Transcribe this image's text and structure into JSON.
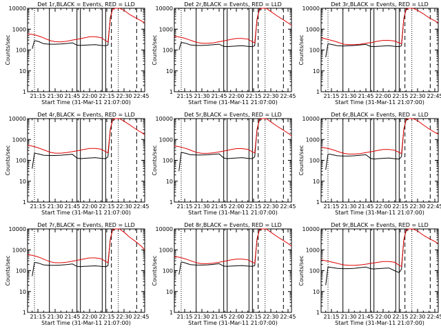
{
  "chart_data": {
    "type": "line",
    "layout": "3x3 grid",
    "x_tick_labels": [
      "21:15",
      "21:30",
      "21:45",
      "22:00",
      "22:15",
      "22:30",
      "22:45"
    ],
    "x_ticks_min": [
      15,
      30,
      45,
      60,
      75,
      90,
      105
    ],
    "x_range_min": [
      6,
      108
    ],
    "xlabel": "Start Time (31-Mar-11 21:07:00)",
    "ylabel": "Counts/sec",
    "y_scale": "log",
    "ylim": [
      1,
      10000
    ],
    "y_tick_labels": [
      "1",
      "10",
      "100",
      "1000",
      "10000"
    ],
    "y_ticks": [
      1,
      10,
      100,
      1000,
      10000
    ],
    "grid": false,
    "series_colors": {
      "events": "#000000",
      "lld": "#e00000"
    },
    "vertical_markers": {
      "solid_min": [
        25,
        49,
        52,
        71,
        74
      ],
      "dotted_min": [
        12,
        85
      ],
      "dashed_min": [
        79,
        101
      ]
    },
    "panels": [
      {
        "title": "Det 1r,BLACK = Events, RED = LLD",
        "events": {
          "x": [
            10,
            12,
            14,
            16,
            20,
            25,
            30,
            35,
            40,
            45,
            49,
            52,
            55,
            60,
            65,
            70,
            74,
            76,
            78,
            80,
            82
          ],
          "y": [
            115,
            280,
            270,
            250,
            200,
            190,
            190,
            195,
            205,
            220,
            170,
            165,
            170,
            175,
            180,
            165,
            160,
            170,
            3500,
            9000,
            9500
          ]
        },
        "lld": {
          "x": [
            6,
            10,
            14,
            18,
            22,
            26,
            30,
            35,
            40,
            45,
            50,
            55,
            60,
            65,
            70,
            74,
            76,
            78,
            80,
            82,
            86,
            90,
            95,
            100,
            105,
            108
          ],
          "y": [
            600,
            560,
            500,
            420,
            340,
            280,
            250,
            245,
            260,
            300,
            330,
            380,
            430,
            430,
            390,
            280,
            240,
            3000,
            9000,
            10000,
            10000,
            8000,
            5000,
            3500,
            2500,
            2000
          ]
        }
      },
      {
        "title": "Det 2r,BLACK = Events, RED = LLD",
        "events": {
          "x": [
            10,
            12,
            14,
            16,
            20,
            25,
            30,
            35,
            40,
            45,
            49,
            52,
            55,
            60,
            65,
            70,
            74,
            76,
            78,
            80,
            82
          ],
          "y": [
            100,
            230,
            220,
            210,
            175,
            165,
            165,
            170,
            180,
            190,
            150,
            145,
            150,
            155,
            160,
            150,
            145,
            160,
            3000,
            8000,
            9000
          ]
        },
        "lld": {
          "x": [
            6,
            10,
            14,
            18,
            22,
            26,
            30,
            35,
            40,
            45,
            50,
            55,
            60,
            65,
            70,
            74,
            76,
            78,
            80,
            82,
            86,
            90,
            95,
            100,
            105,
            108
          ],
          "y": [
            460,
            420,
            380,
            320,
            270,
            230,
            210,
            210,
            220,
            250,
            280,
            320,
            360,
            360,
            330,
            250,
            220,
            2800,
            9000,
            10000,
            10000,
            7000,
            4500,
            3000,
            2000,
            1500
          ]
        }
      },
      {
        "title": "Det 3r,BLACK = Events, RED = LLD",
        "events": {
          "x": [
            10,
            12,
            14,
            16,
            20,
            25,
            30,
            35,
            40,
            45,
            49,
            52,
            55,
            60,
            65,
            70,
            74,
            76,
            78,
            80,
            82
          ],
          "y": [
            45,
            200,
            190,
            180,
            160,
            155,
            160,
            165,
            175,
            185,
            150,
            145,
            150,
            155,
            160,
            150,
            145,
            160,
            3200,
            8500,
            9000
          ]
        },
        "lld": {
          "x": [
            6,
            10,
            14,
            18,
            22,
            26,
            30,
            35,
            40,
            45,
            50,
            55,
            60,
            65,
            70,
            74,
            76,
            78,
            80,
            82,
            86,
            90,
            95,
            100,
            105,
            108
          ],
          "y": [
            380,
            340,
            300,
            260,
            220,
            190,
            180,
            180,
            190,
            210,
            230,
            260,
            290,
            290,
            270,
            220,
            200,
            3000,
            9000,
            10000,
            10000,
            8000,
            5500,
            3500,
            2500,
            2000
          ]
        }
      },
      {
        "title": "Det 4r,BLACK = Events, RED = LLD",
        "events": {
          "x": [
            10,
            12,
            14,
            16,
            20,
            25,
            30,
            35,
            40,
            45,
            49,
            52,
            55,
            60,
            65,
            70,
            74,
            76,
            78,
            80,
            82
          ],
          "y": [
            40,
            220,
            210,
            200,
            175,
            170,
            170,
            175,
            185,
            195,
            130,
            120,
            125,
            130,
            135,
            125,
            120,
            150,
            3000,
            8000,
            9000
          ]
        },
        "lld": {
          "x": [
            6,
            10,
            14,
            18,
            22,
            26,
            30,
            35,
            40,
            45,
            50,
            55,
            60,
            65,
            70,
            74,
            76,
            78,
            80,
            82,
            86,
            90,
            95,
            100,
            105,
            108
          ],
          "y": [
            520,
            480,
            420,
            350,
            290,
            240,
            220,
            220,
            235,
            260,
            290,
            330,
            370,
            370,
            340,
            260,
            230,
            2800,
            9000,
            10000,
            10000,
            7500,
            5000,
            3200,
            2200,
            1700
          ]
        }
      },
      {
        "title": "Det 5r,BLACK = Events, RED = LLD",
        "events": {
          "x": [
            10,
            12,
            14,
            16,
            20,
            25,
            30,
            35,
            40,
            45,
            49,
            52,
            55,
            60,
            65,
            70,
            74,
            76,
            78,
            80,
            82
          ],
          "y": [
            30,
            240,
            230,
            215,
            185,
            180,
            180,
            185,
            195,
            205,
            130,
            120,
            125,
            130,
            135,
            125,
            120,
            150,
            3000,
            8000,
            9000
          ]
        },
        "lld": {
          "x": [
            6,
            10,
            14,
            18,
            22,
            26,
            30,
            35,
            40,
            45,
            50,
            55,
            60,
            65,
            70,
            74,
            76,
            78,
            80,
            82,
            86,
            90,
            95,
            100,
            105,
            108
          ],
          "y": [
            490,
            450,
            400,
            340,
            280,
            235,
            215,
            215,
            230,
            255,
            285,
            325,
            365,
            365,
            335,
            255,
            225,
            2800,
            9000,
            10000,
            10000,
            7000,
            4500,
            3000,
            2000,
            1500
          ]
        }
      },
      {
        "title": "Det 6r,BLACK = Events, RED = LLD",
        "events": {
          "x": [
            10,
            12,
            14,
            16,
            20,
            25,
            30,
            35,
            40,
            45,
            49,
            52,
            55,
            60,
            65,
            70,
            74,
            76,
            78,
            80,
            82
          ],
          "y": [
            35,
            200,
            195,
            185,
            165,
            160,
            160,
            165,
            175,
            185,
            125,
            115,
            120,
            125,
            130,
            120,
            115,
            150,
            3000,
            8500,
            9000
          ]
        },
        "lld": {
          "x": [
            6,
            10,
            14,
            18,
            22,
            26,
            30,
            35,
            40,
            45,
            50,
            55,
            60,
            65,
            70,
            74,
            76,
            78,
            80,
            82,
            86,
            90,
            95,
            100,
            105,
            108
          ],
          "y": [
            420,
            390,
            350,
            300,
            250,
            215,
            200,
            200,
            210,
            235,
            260,
            295,
            330,
            330,
            305,
            240,
            210,
            2900,
            9000,
            10000,
            10000,
            8000,
            5000,
            3200,
            2200,
            1800
          ]
        }
      },
      {
        "title": "Det 7r,BLACK = Events, RED = LLD",
        "events": {
          "x": [
            10,
            12,
            14,
            16,
            20,
            25,
            30,
            35,
            40,
            45,
            49,
            52,
            55,
            60,
            65,
            70,
            74,
            76,
            78,
            80,
            82
          ],
          "y": [
            55,
            250,
            240,
            225,
            190,
            180,
            180,
            185,
            195,
            210,
            160,
            155,
            160,
            165,
            170,
            160,
            155,
            170,
            3200,
            8500,
            9000
          ]
        },
        "lld": {
          "x": [
            6,
            10,
            14,
            18,
            22,
            26,
            30,
            35,
            40,
            45,
            50,
            55,
            60,
            65,
            70,
            74,
            76,
            78,
            80,
            82,
            86,
            90,
            95,
            100,
            105,
            108
          ],
          "y": [
            580,
            540,
            480,
            400,
            320,
            265,
            240,
            240,
            255,
            285,
            320,
            365,
            410,
            410,
            375,
            275,
            240,
            3000,
            9000,
            10000,
            10000,
            7000,
            4000,
            2500,
            1500,
            1000
          ]
        }
      },
      {
        "title": "Det 8r,BLACK = Events, RED = LLD",
        "events": {
          "x": [
            10,
            12,
            14,
            16,
            20,
            25,
            30,
            35,
            40,
            45,
            49,
            52,
            55,
            60,
            65,
            70,
            74,
            76,
            78,
            80,
            82
          ],
          "y": [
            65,
            260,
            250,
            230,
            195,
            185,
            185,
            190,
            200,
            215,
            165,
            160,
            165,
            170,
            175,
            165,
            160,
            175,
            3300,
            8500,
            9000
          ]
        },
        "lld": {
          "x": [
            6,
            10,
            14,
            18,
            22,
            26,
            30,
            35,
            40,
            45,
            50,
            55,
            60,
            65,
            70,
            74,
            76,
            78,
            80,
            82,
            86,
            90,
            95,
            100,
            105,
            108
          ],
          "y": [
            480,
            440,
            390,
            330,
            275,
            235,
            215,
            215,
            230,
            255,
            285,
            325,
            360,
            360,
            330,
            255,
            225,
            3000,
            9000,
            10000,
            10000,
            7000,
            4500,
            3000,
            2000,
            1500
          ]
        }
      },
      {
        "title": "Det 9r,BLACK = Events, RED = LLD",
        "events": {
          "x": [
            10,
            12,
            14,
            16,
            20,
            25,
            30,
            35,
            40,
            45,
            49,
            52,
            55,
            60,
            65,
            70,
            74,
            76,
            78,
            80,
            82
          ],
          "y": [
            20,
            150,
            145,
            140,
            130,
            125,
            125,
            130,
            140,
            150,
            125,
            120,
            125,
            130,
            135,
            100,
            80,
            120,
            3000,
            8000,
            9000
          ]
        },
        "lld": {
          "x": [
            6,
            10,
            14,
            18,
            22,
            26,
            30,
            35,
            40,
            45,
            50,
            55,
            60,
            65,
            70,
            74,
            76,
            78,
            80,
            82,
            86,
            90,
            95,
            100,
            105,
            108
          ],
          "y": [
            330,
            300,
            270,
            240,
            210,
            190,
            180,
            180,
            190,
            205,
            225,
            250,
            275,
            275,
            255,
            180,
            160,
            2800,
            9000,
            10000,
            10000,
            8000,
            5000,
            3500,
            2500,
            2000
          ]
        }
      }
    ]
  }
}
